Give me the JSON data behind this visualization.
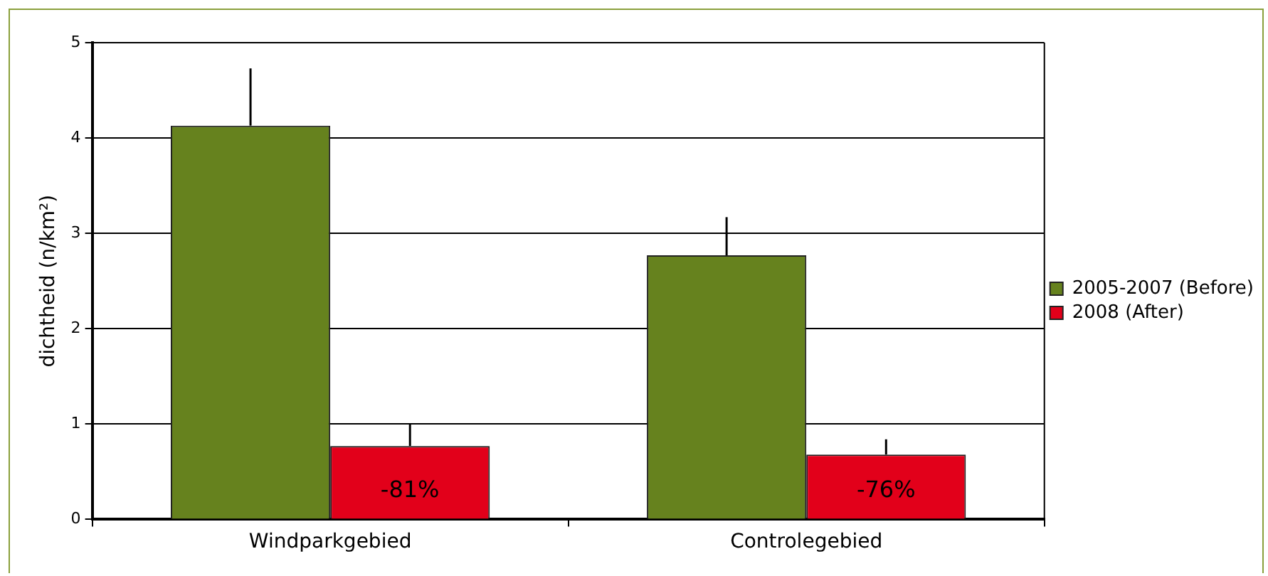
{
  "chart_data": {
    "type": "bar",
    "ylabel": "dichtheid (n/km²)",
    "categories": [
      "Windparkgebied",
      "Controlegebied"
    ],
    "series": [
      {
        "name": "2005-2007 (Before)",
        "color": "#66821e",
        "values": [
          4.13,
          2.77
        ],
        "errors": [
          [
            4.13,
            4.73
          ],
          [
            2.77,
            3.17
          ]
        ]
      },
      {
        "name": "2008 (After)",
        "color": "#e2001a",
        "values": [
          0.77,
          0.68
        ],
        "errors": [
          [
            0.77,
            1.0
          ],
          [
            0.68,
            0.84
          ]
        ]
      }
    ],
    "annotations": [
      "-81%",
      "-76%"
    ],
    "ylim": [
      0,
      5
    ],
    "yticks": [
      0,
      1,
      2,
      3,
      4,
      5
    ],
    "grid": "y",
    "legend": "right"
  }
}
